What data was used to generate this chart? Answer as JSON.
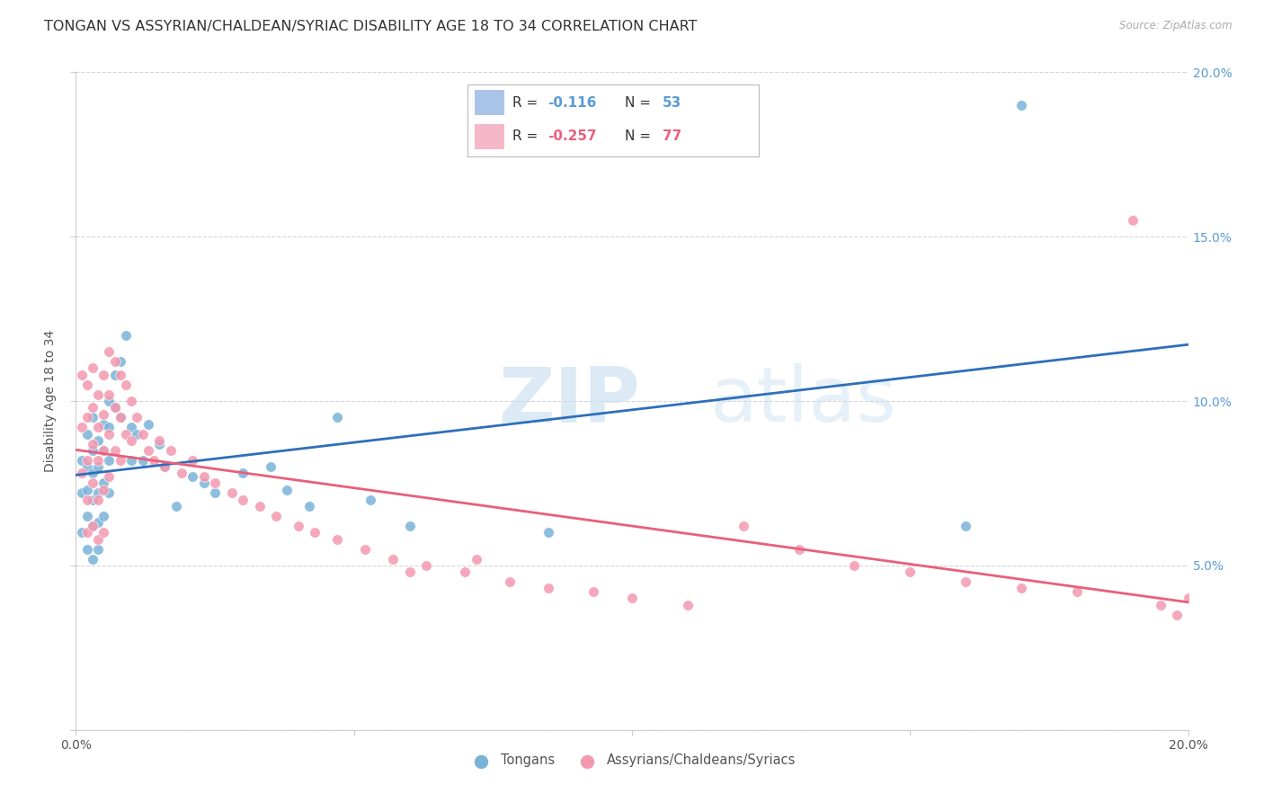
{
  "title": "TONGAN VS ASSYRIAN/CHALDEAN/SYRIAC DISABILITY AGE 18 TO 34 CORRELATION CHART",
  "source": "Source: ZipAtlas.com",
  "ylabel": "Disability Age 18 to 34",
  "tongans_color": "#7ab3d9",
  "assyrians_color": "#f498b0",
  "tongans_line_color": "#2e6fba",
  "assyrians_line_color": "#e8607a",
  "watermark_zip": "ZIP",
  "watermark_atlas": "atlas",
  "xlim": [
    0.0,
    0.2
  ],
  "ylim": [
    0.0,
    0.2
  ],
  "background_color": "#ffffff",
  "grid_color": "#d5d5d5",
  "tongans_x": [
    0.001,
    0.001,
    0.001,
    0.002,
    0.002,
    0.002,
    0.002,
    0.002,
    0.003,
    0.003,
    0.003,
    0.003,
    0.003,
    0.003,
    0.004,
    0.004,
    0.004,
    0.004,
    0.004,
    0.005,
    0.005,
    0.005,
    0.005,
    0.006,
    0.006,
    0.006,
    0.006,
    0.007,
    0.007,
    0.008,
    0.008,
    0.009,
    0.01,
    0.01,
    0.011,
    0.012,
    0.013,
    0.015,
    0.016,
    0.018,
    0.021,
    0.023,
    0.025,
    0.03,
    0.035,
    0.038,
    0.042,
    0.047,
    0.053,
    0.06,
    0.085,
    0.16,
    0.17
  ],
  "tongans_y": [
    0.082,
    0.072,
    0.06,
    0.09,
    0.08,
    0.073,
    0.065,
    0.055,
    0.095,
    0.085,
    0.078,
    0.07,
    0.062,
    0.052,
    0.088,
    0.08,
    0.072,
    0.063,
    0.055,
    0.093,
    0.085,
    0.075,
    0.065,
    0.1,
    0.092,
    0.082,
    0.072,
    0.108,
    0.098,
    0.112,
    0.095,
    0.12,
    0.092,
    0.082,
    0.09,
    0.082,
    0.093,
    0.087,
    0.08,
    0.068,
    0.077,
    0.075,
    0.072,
    0.078,
    0.08,
    0.073,
    0.068,
    0.095,
    0.07,
    0.062,
    0.06,
    0.062,
    0.19
  ],
  "assyrians_x": [
    0.001,
    0.001,
    0.001,
    0.002,
    0.002,
    0.002,
    0.002,
    0.002,
    0.003,
    0.003,
    0.003,
    0.003,
    0.003,
    0.004,
    0.004,
    0.004,
    0.004,
    0.004,
    0.005,
    0.005,
    0.005,
    0.005,
    0.005,
    0.006,
    0.006,
    0.006,
    0.006,
    0.007,
    0.007,
    0.007,
    0.008,
    0.008,
    0.008,
    0.009,
    0.009,
    0.01,
    0.01,
    0.011,
    0.012,
    0.013,
    0.014,
    0.015,
    0.016,
    0.017,
    0.019,
    0.021,
    0.023,
    0.025,
    0.028,
    0.03,
    0.033,
    0.036,
    0.04,
    0.043,
    0.047,
    0.052,
    0.057,
    0.063,
    0.07,
    0.078,
    0.085,
    0.093,
    0.1,
    0.11,
    0.12,
    0.13,
    0.14,
    0.15,
    0.16,
    0.17,
    0.18,
    0.19,
    0.195,
    0.198,
    0.2,
    0.06,
    0.072
  ],
  "assyrians_y": [
    0.108,
    0.092,
    0.078,
    0.105,
    0.095,
    0.082,
    0.07,
    0.06,
    0.11,
    0.098,
    0.087,
    0.075,
    0.062,
    0.102,
    0.092,
    0.082,
    0.07,
    0.058,
    0.108,
    0.096,
    0.085,
    0.073,
    0.06,
    0.115,
    0.102,
    0.09,
    0.077,
    0.112,
    0.098,
    0.085,
    0.108,
    0.095,
    0.082,
    0.105,
    0.09,
    0.1,
    0.088,
    0.095,
    0.09,
    0.085,
    0.082,
    0.088,
    0.08,
    0.085,
    0.078,
    0.082,
    0.077,
    0.075,
    0.072,
    0.07,
    0.068,
    0.065,
    0.062,
    0.06,
    0.058,
    0.055,
    0.052,
    0.05,
    0.048,
    0.045,
    0.043,
    0.042,
    0.04,
    0.038,
    0.062,
    0.055,
    0.05,
    0.048,
    0.045,
    0.043,
    0.042,
    0.155,
    0.038,
    0.035,
    0.04,
    0.048,
    0.052
  ],
  "legend_r1": "R = ",
  "legend_v1": "-0.116",
  "legend_n1": "N = ",
  "legend_nv1": "53",
  "legend_r2": "R = ",
  "legend_v2": "-0.257",
  "legend_n2": "N = ",
  "legend_nv2": "77",
  "legend_color1": "#aac4e8",
  "legend_color2": "#f4b8c8",
  "legend_text_color": "#333333",
  "legend_val_color1": "#5b9bd5",
  "legend_val_color2": "#e8607a",
  "label_tongans": "Tongans",
  "label_assyrians": "Assyrians/Chaldeans/Syriacs",
  "title_fontsize": 11.5,
  "tick_fontsize": 10,
  "axis_label_fontsize": 10
}
